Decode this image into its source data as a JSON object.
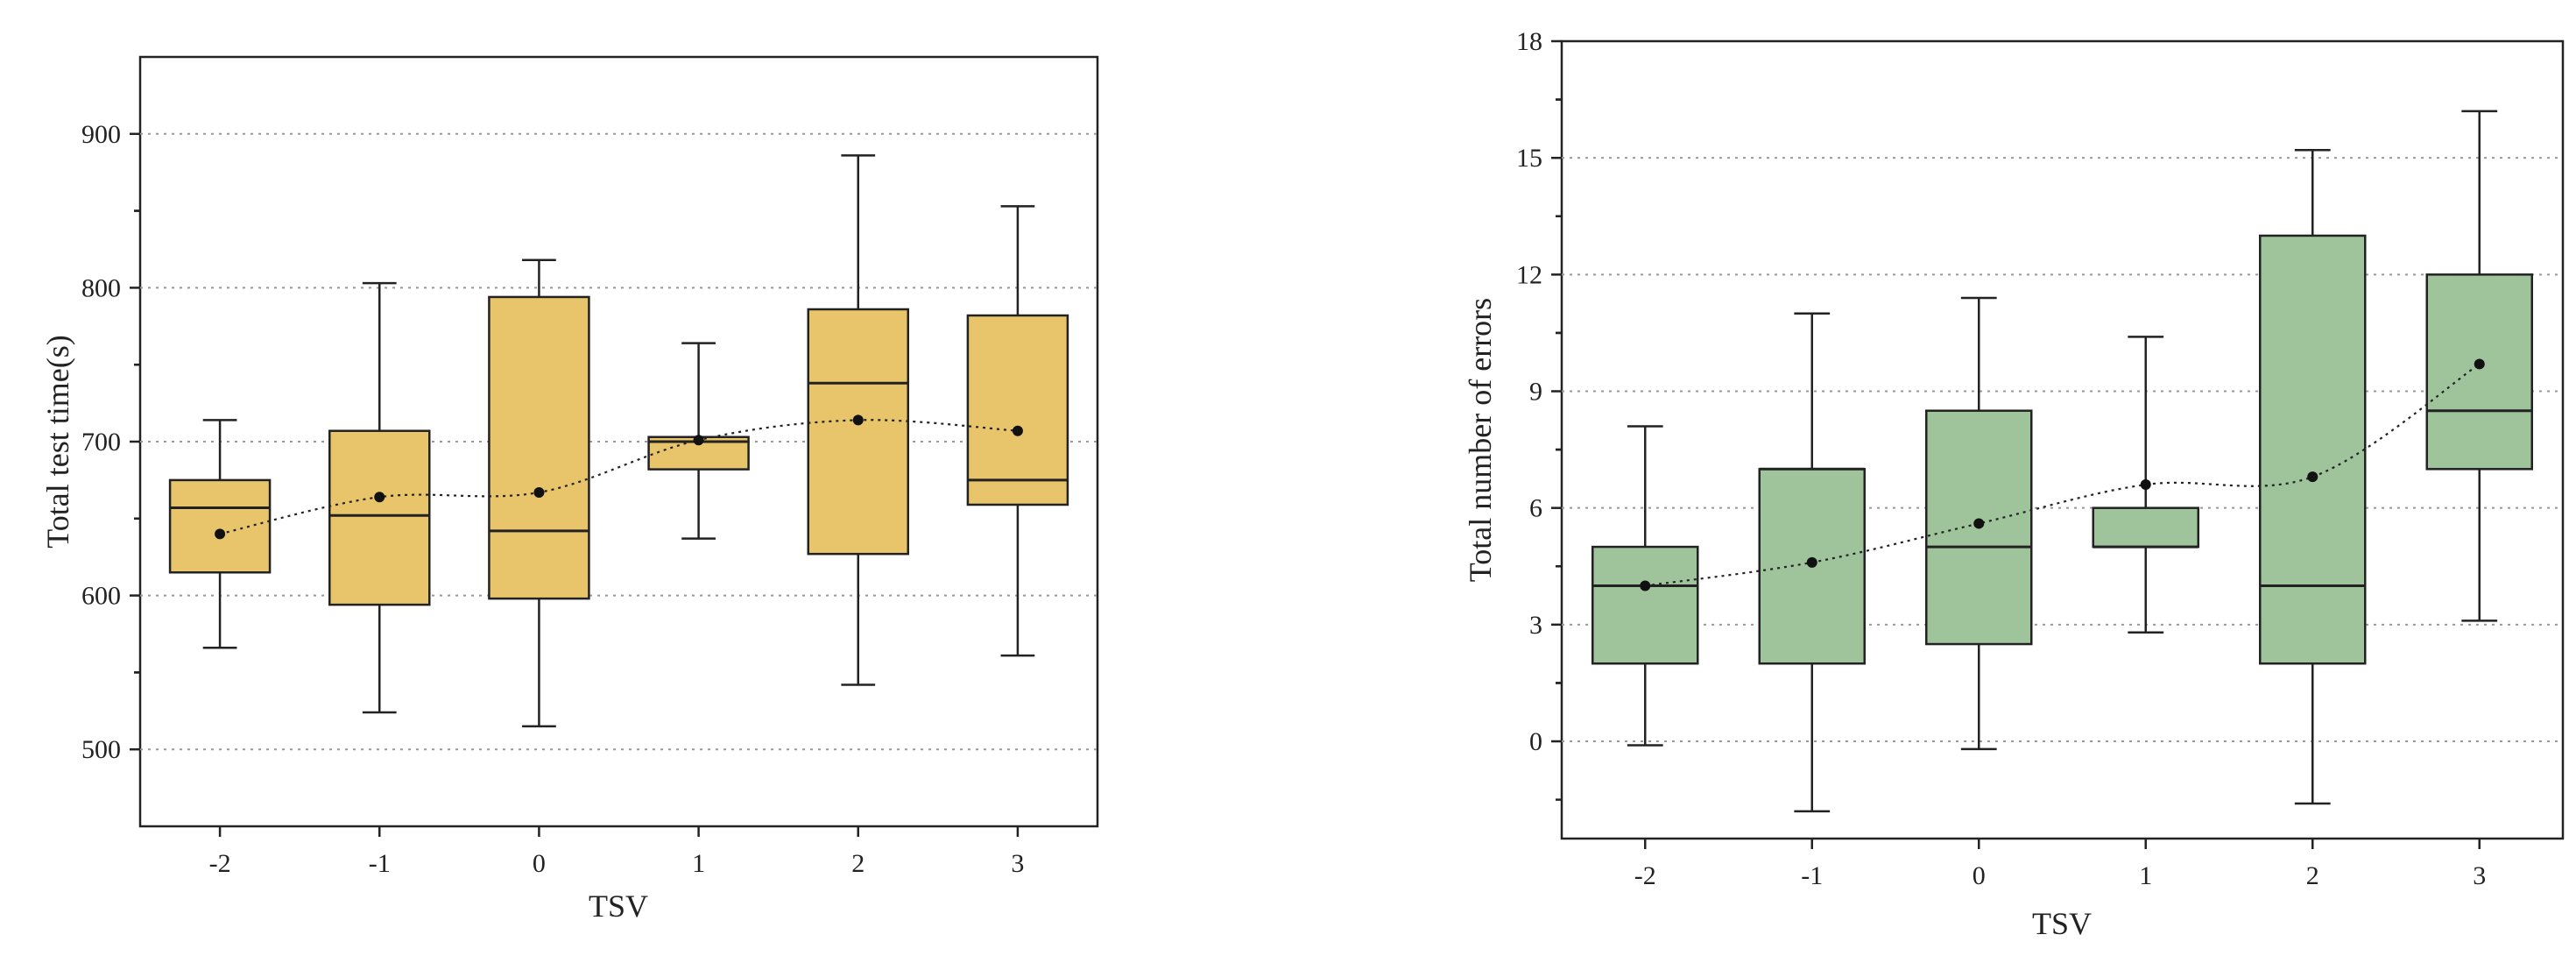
{
  "chart_data": [
    {
      "type": "box",
      "xlabel": "TSV",
      "ylabel": "Total test time(s)",
      "categories": [
        "-2",
        "-1",
        "0",
        "1",
        "2",
        "3"
      ],
      "ylim": [
        450,
        950
      ],
      "yticks": [
        500,
        600,
        700,
        800,
        900
      ],
      "ytick_labels": [
        "500",
        "600",
        "700",
        "800",
        "900"
      ],
      "grid": true,
      "fill_color": "#E8C46A",
      "boxes": [
        {
          "min": 566,
          "q1": 615,
          "median": 657,
          "q3": 675,
          "max": 714,
          "mean": 640
        },
        {
          "min": 524,
          "q1": 594,
          "median": 652,
          "q3": 707,
          "max": 803,
          "mean": 664
        },
        {
          "min": 515,
          "q1": 598,
          "median": 642,
          "q3": 794,
          "max": 818,
          "mean": 667
        },
        {
          "min": 637,
          "q1": 682,
          "median": 700,
          "q3": 703,
          "max": 764,
          "mean": 701
        },
        {
          "min": 542,
          "q1": 627,
          "median": 738,
          "q3": 786,
          "max": 886,
          "mean": 714
        },
        {
          "min": 561,
          "q1": 659,
          "median": 675,
          "q3": 782,
          "max": 853,
          "mean": 707
        }
      ]
    },
    {
      "type": "box",
      "xlabel": "TSV",
      "ylabel": "Total  number of errors",
      "categories": [
        "-2",
        "-1",
        "0",
        "1",
        "2",
        "3"
      ],
      "ylim": [
        -2.5,
        18
      ],
      "yticks": [
        0,
        3,
        6,
        9,
        12,
        15,
        18
      ],
      "ytick_labels": [
        "0",
        "3",
        "6",
        "9",
        "12",
        "15",
        "18"
      ],
      "grid": true,
      "fill_color": "#9FC39B",
      "boxes": [
        {
          "min": -0.1,
          "q1": 2,
          "median": 4,
          "q3": 5,
          "max": 8.1,
          "mean": 4.0
        },
        {
          "min": -1.8,
          "q1": 2,
          "median": 7,
          "q3": 7,
          "max": 11,
          "mean": 4.6
        },
        {
          "min": -0.2,
          "q1": 2.5,
          "median": 5,
          "q3": 8.5,
          "max": 11.4,
          "mean": 5.6
        },
        {
          "min": 2.8,
          "q1": 5,
          "median": 5,
          "q3": 6,
          "max": 10.4,
          "mean": 6.6
        },
        {
          "min": -1.6,
          "q1": 2,
          "median": 4,
          "q3": 13,
          "max": 15.2,
          "mean": 6.8
        },
        {
          "min": 3.1,
          "q1": 7,
          "median": 8.5,
          "q3": 12,
          "max": 16.2,
          "mean": 9.7
        }
      ]
    }
  ]
}
